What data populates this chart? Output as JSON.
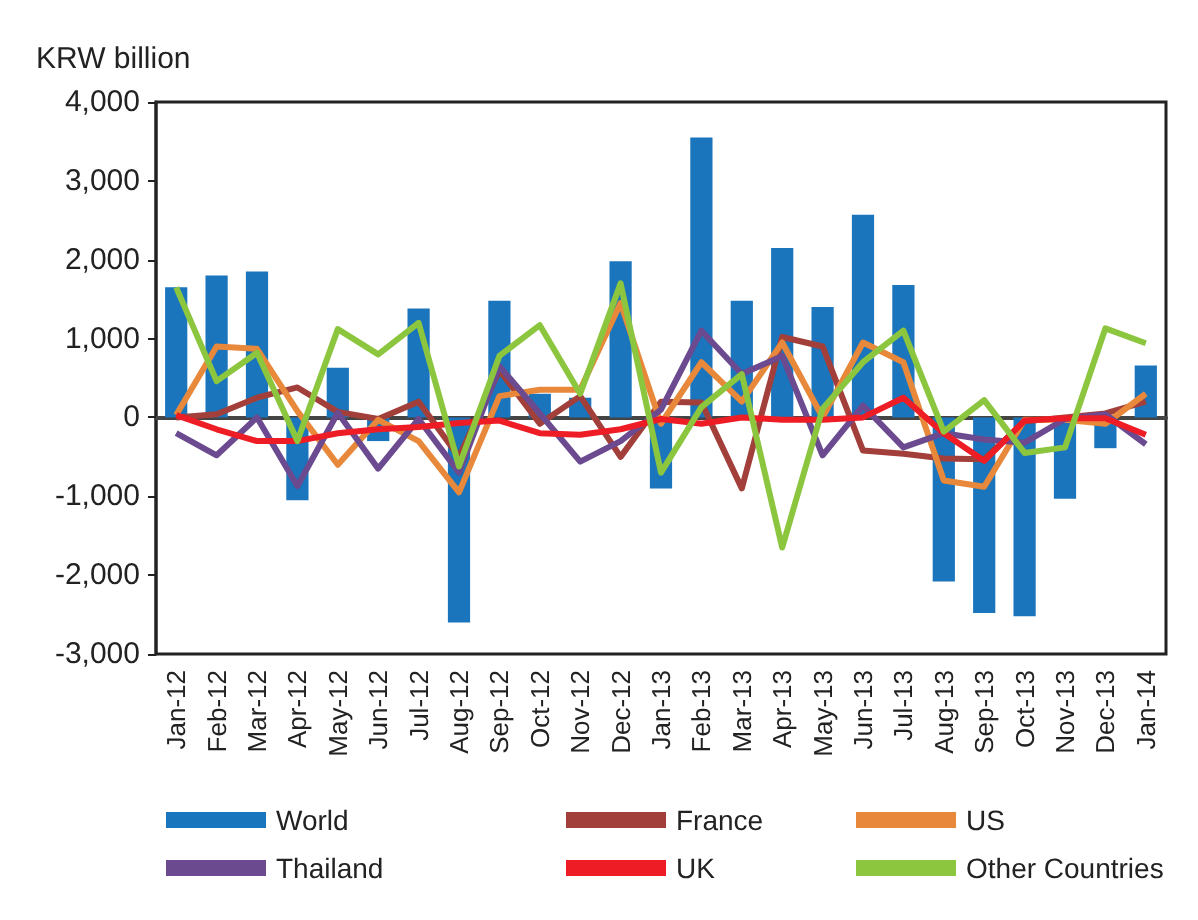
{
  "chart_data": {
    "type": "bar",
    "ylabel": "KRW billion",
    "categories": [
      "Jan-12",
      "Feb-12",
      "Mar-12",
      "Apr-12",
      "May-12",
      "Jun-12",
      "Jul-12",
      "Aug-12",
      "Sep-12",
      "Oct-12",
      "Nov-12",
      "Dec-12",
      "Jan-13",
      "Feb-13",
      "Mar-13",
      "Apr-13",
      "May-13",
      "Jun-13",
      "Jul-13",
      "Aug-13",
      "Sep-13",
      "Oct-13",
      "Nov-13",
      "Dec-13",
      "Jan-14"
    ],
    "series": [
      {
        "name": "World",
        "color": "#1a75bc",
        "values": [
          1650,
          1800,
          1850,
          -1050,
          630,
          -300,
          1380,
          -2600,
          1480,
          300,
          250,
          1980,
          -900,
          3550,
          1480,
          2150,
          1400,
          2570,
          1680,
          -2080,
          -2480,
          -2520,
          -1030,
          -390,
          660
        ]
      },
      {
        "name": "France",
        "type": "line",
        "color": "#a23f3a",
        "values": [
          0,
          40,
          250,
          380,
          70,
          -20,
          200,
          -500,
          600,
          -80,
          270,
          -500,
          200,
          190,
          -900,
          1020,
          900,
          -420,
          -460,
          -520,
          -530,
          -50,
          0,
          50,
          200
        ]
      },
      {
        "name": "US",
        "type": "line",
        "color": "#e8883a",
        "values": [
          30,
          900,
          870,
          80,
          -600,
          -30,
          -300,
          -950,
          270,
          350,
          350,
          1450,
          -80,
          700,
          200,
          950,
          0,
          950,
          700,
          -800,
          -880,
          -30,
          -30,
          -80,
          300
        ]
      },
      {
        "name": "Thailand",
        "type": "line",
        "color": "#6b4a8f",
        "values": [
          -200,
          -480,
          0,
          -870,
          60,
          -650,
          -20,
          -700,
          650,
          50,
          -560,
          -300,
          100,
          1100,
          550,
          780,
          -480,
          150,
          -380,
          -200,
          -280,
          -320,
          -20,
          40,
          -340
        ]
      },
      {
        "name": "UK",
        "type": "line",
        "color": "#ee1c24",
        "values": [
          30,
          -150,
          -300,
          -300,
          -200,
          -150,
          -120,
          -70,
          -40,
          -200,
          -220,
          -150,
          -20,
          -80,
          0,
          -30,
          -30,
          0,
          250,
          -200,
          -550,
          -40,
          -10,
          -10,
          -220
        ]
      },
      {
        "name": "Other Countries",
        "type": "line",
        "color": "#8cc63f",
        "values": [
          1650,
          460,
          820,
          -300,
          1120,
          800,
          1200,
          -620,
          780,
          1170,
          300,
          1700,
          -700,
          130,
          550,
          -1650,
          110,
          700,
          1100,
          -180,
          220,
          -450,
          -380,
          1130,
          940
        ]
      }
    ],
    "ylim": [
      -3000,
      4000
    ],
    "yticks": [
      {
        "value": -3000,
        "label": "-3,000"
      },
      {
        "value": -2000,
        "label": "-2,000"
      },
      {
        "value": -1000,
        "label": "-1,000"
      },
      0,
      {
        "value": 1000,
        "label": "1,000"
      },
      {
        "value": 2000,
        "label": "2,000"
      },
      {
        "value": 3000,
        "label": "3,000"
      },
      {
        "value": 4000,
        "label": "4,000"
      }
    ],
    "legend": "bottom",
    "marker": "none",
    "line_style": "solid"
  }
}
